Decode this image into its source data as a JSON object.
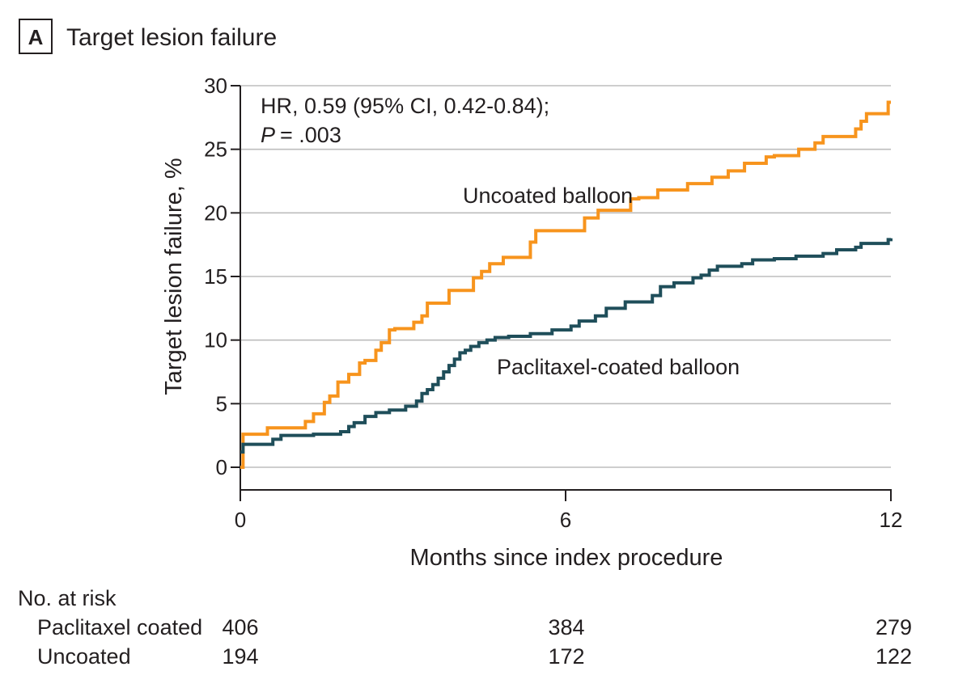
{
  "panel": {
    "letter": "A",
    "title": "Target lesion failure"
  },
  "chart_data": {
    "type": "line",
    "subtype": "kaplan-meier-cumulative-incidence",
    "title": "Target lesion failure",
    "xlabel": "Months since index procedure",
    "ylabel": "Target lesion failure, %",
    "xlim": [
      0,
      12
    ],
    "ylim": [
      0,
      30
    ],
    "xticks": [
      0,
      6,
      12
    ],
    "yticks": [
      0,
      5,
      10,
      15,
      20,
      25,
      30
    ],
    "grid": true,
    "annotation": {
      "hr_line": "HR, 0.59 (95% CI, 0.42-0.84);",
      "p_label": "P",
      "p_value": "= .003"
    },
    "series": [
      {
        "name": "Uncoated balloon",
        "color": "#f7941d",
        "x": [
          0,
          0.05,
          0.5,
          1.2,
          1.35,
          1.55,
          1.65,
          1.8,
          2.0,
          2.2,
          2.3,
          2.5,
          2.6,
          2.75,
          2.85,
          3.2,
          3.35,
          3.45,
          3.85,
          4.3,
          4.45,
          4.6,
          4.85,
          5.35,
          5.45,
          5.75,
          6.35,
          6.6,
          7.2,
          7.35,
          7.7,
          8.25,
          8.7,
          9.0,
          9.3,
          9.7,
          9.85,
          10.3,
          10.6,
          10.75,
          11.35,
          11.45,
          11.55,
          11.95,
          12.0
        ],
        "y": [
          0,
          2.6,
          3.1,
          3.6,
          4.2,
          5.1,
          5.6,
          6.7,
          7.3,
          8.2,
          8.4,
          9.2,
          9.8,
          10.8,
          10.9,
          11.4,
          11.9,
          12.9,
          13.9,
          14.9,
          15.4,
          16.0,
          16.5,
          17.7,
          18.6,
          18.6,
          19.6,
          20.2,
          21.1,
          21.2,
          21.8,
          22.3,
          22.8,
          23.3,
          23.9,
          24.4,
          24.5,
          25.0,
          25.5,
          26.0,
          26.6,
          27.2,
          27.8,
          28.7,
          28.7
        ]
      },
      {
        "name": "Paclitaxel-coated balloon",
        "color": "#1f4e5a",
        "x": [
          0,
          0.05,
          0.6,
          0.75,
          0.95,
          1.35,
          1.85,
          2.0,
          2.1,
          2.3,
          2.5,
          2.75,
          3.05,
          3.25,
          3.35,
          3.45,
          3.55,
          3.65,
          3.75,
          3.85,
          3.95,
          4.05,
          4.15,
          4.25,
          4.4,
          4.55,
          4.7,
          4.95,
          5.35,
          5.75,
          6.1,
          6.25,
          6.55,
          6.75,
          7.1,
          7.6,
          7.75,
          8.0,
          8.35,
          8.5,
          8.65,
          8.8,
          9.25,
          9.45,
          9.85,
          10.25,
          10.75,
          11.0,
          11.35,
          11.45,
          11.95,
          12.0
        ],
        "y": [
          1.2,
          1.8,
          2.2,
          2.5,
          2.5,
          2.6,
          2.8,
          3.2,
          3.5,
          4.0,
          4.3,
          4.5,
          4.8,
          5.2,
          5.8,
          6.1,
          6.5,
          7.0,
          7.5,
          8.0,
          8.5,
          9.0,
          9.2,
          9.5,
          9.8,
          10.0,
          10.2,
          10.3,
          10.5,
          10.8,
          11.1,
          11.5,
          11.9,
          12.5,
          13.0,
          13.5,
          14.2,
          14.5,
          14.9,
          15.1,
          15.5,
          15.8,
          16.0,
          16.3,
          16.4,
          16.6,
          16.8,
          17.1,
          17.3,
          17.6,
          17.9,
          18.0
        ]
      }
    ],
    "series_labels": [
      "Uncoated balloon",
      "Paclitaxel-coated balloon"
    ]
  },
  "risk_table": {
    "title": "No. at risk",
    "rows": [
      {
        "label": "Paclitaxel coated",
        "values": [
          "406",
          "384",
          "279"
        ]
      },
      {
        "label": "Uncoated",
        "values": [
          "194",
          "172",
          "122"
        ]
      }
    ]
  }
}
